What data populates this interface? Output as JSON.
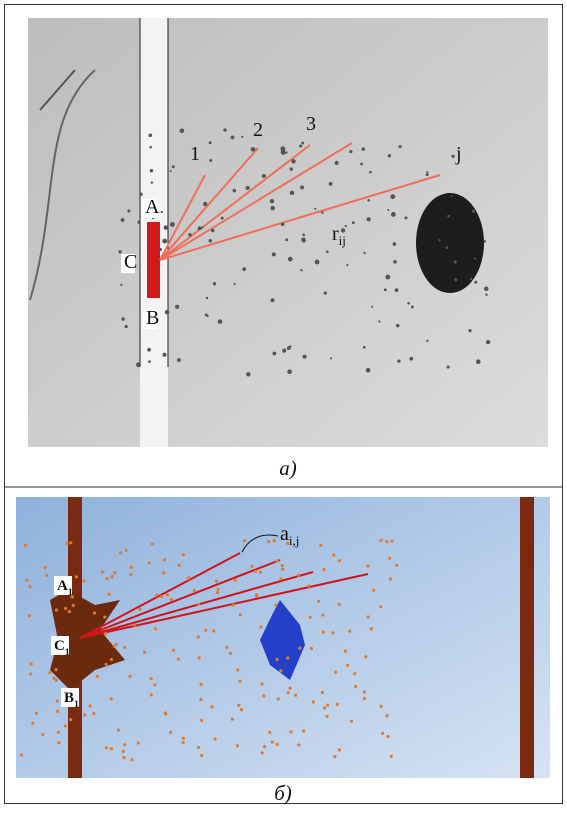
{
  "panels": [
    {
      "caption": "a)",
      "labels": [
        {
          "text": "1"
        },
        {
          "text": "2"
        },
        {
          "text": "3"
        },
        {
          "text": "j"
        },
        {
          "text": "A"
        },
        {
          "text": "C"
        },
        {
          "text": "B"
        },
        {
          "text": "r",
          "sub": "ij"
        }
      ]
    },
    {
      "caption": "б)",
      "labels": [
        {
          "text": "A",
          "sub": "1"
        },
        {
          "text": "C",
          "sub": "1"
        },
        {
          "text": "B",
          "sub": "1"
        },
        {
          "text": "a",
          "sub": "i,j"
        }
      ]
    }
  ]
}
